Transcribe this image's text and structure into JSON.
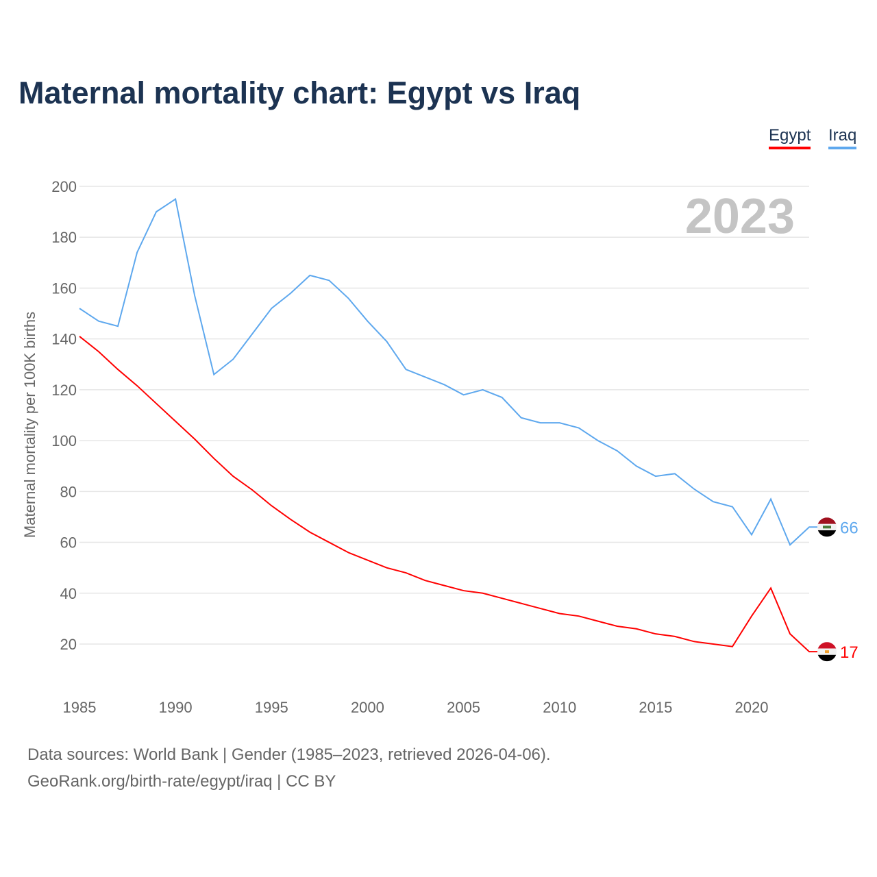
{
  "chart_data": {
    "type": "line",
    "title": "Maternal mortality chart: Egypt vs Iraq",
    "ylabel": "Maternal mortality per 100K births",
    "xlabel": "",
    "year_label": "2023",
    "xlim": [
      1985,
      2023
    ],
    "ylim": [
      10,
      200
    ],
    "yticks": [
      20,
      40,
      60,
      80,
      100,
      120,
      140,
      160,
      180,
      200
    ],
    "xticks": [
      1985,
      1990,
      1995,
      2000,
      2005,
      2010,
      2015,
      2020
    ],
    "grid": true,
    "legend_placement": "top-right",
    "x": [
      1985,
      1986,
      1987,
      1988,
      1989,
      1990,
      1991,
      1992,
      1993,
      1994,
      1995,
      1996,
      1997,
      1998,
      1999,
      2000,
      2001,
      2002,
      2003,
      2004,
      2005,
      2006,
      2007,
      2008,
      2009,
      2010,
      2011,
      2012,
      2013,
      2014,
      2015,
      2016,
      2017,
      2018,
      2019,
      2020,
      2021,
      2022,
      2023
    ],
    "series": [
      {
        "name": "Egypt",
        "color": "#ff0000",
        "end_label": "17",
        "values": [
          141,
          135,
          128,
          121.6,
          114.6,
          107.6,
          100.6,
          93,
          86,
          80.6,
          74.4,
          69,
          64,
          60,
          56,
          53,
          50,
          48,
          45,
          43,
          41,
          40,
          38,
          36,
          34,
          32,
          31,
          29,
          27,
          26,
          24,
          23,
          21,
          20,
          19,
          31,
          42,
          24,
          17
        ]
      },
      {
        "name": "Iraq",
        "color": "#5ea8ee",
        "end_label": "66",
        "values": [
          152,
          147,
          145,
          174,
          190,
          195,
          157,
          126,
          132,
          142,
          152,
          158,
          165,
          163,
          156,
          147,
          139,
          128,
          125,
          122,
          118,
          120,
          117,
          109,
          107,
          107,
          105,
          100,
          96,
          90,
          86,
          87,
          81,
          76,
          74,
          63,
          77,
          59,
          66
        ]
      }
    ]
  },
  "footer": {
    "line1": "Data sources: World Bank | Gender (1985–2023, retrieved 2026-04-06).",
    "line2": "GeoRank.org/birth-rate/egypt/iraq | CC BY"
  }
}
